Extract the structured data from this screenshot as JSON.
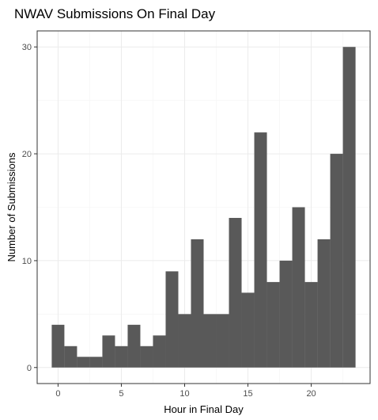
{
  "chart_data": {
    "type": "bar",
    "title": "NWAV Submissions On Final Day",
    "xlabel": "Hour in Final Day",
    "ylabel": "Number of Submissions",
    "x": [
      0,
      1,
      2,
      3,
      4,
      5,
      6,
      7,
      8,
      9,
      10,
      11,
      12,
      13,
      14,
      15,
      16,
      17,
      18,
      19,
      20,
      21,
      22,
      23
    ],
    "values": [
      4,
      2,
      1,
      1,
      3,
      2,
      4,
      2,
      3,
      9,
      5,
      12,
      5,
      5,
      14,
      7,
      22,
      8,
      10,
      15,
      8,
      12,
      20,
      30
    ],
    "xticks": [
      0,
      5,
      10,
      15,
      20
    ],
    "yticks": [
      0,
      10,
      20,
      30
    ],
    "xlim": [
      -1.65,
      24.65
    ],
    "ylim": [
      -1.5,
      31.5
    ],
    "grid": true,
    "bar_color": "#595959",
    "theme": "bw"
  }
}
